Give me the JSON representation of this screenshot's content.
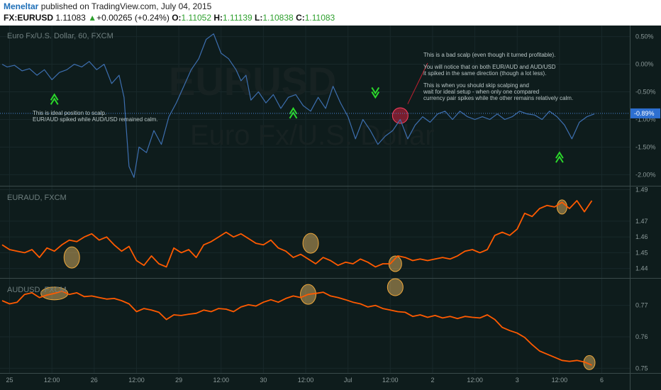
{
  "header": {
    "author": "Meneltar",
    "published": " published on TradingView.com, July 04, 2015",
    "symbol": "FX:EURUSD",
    "price": "1.11083",
    "arrow": "▲",
    "change": "+0.00265 (+0.24%)",
    "o_label": "O:",
    "o_value": "1.11052",
    "h_label": "H:",
    "h_value": "1.11139",
    "l_label": "L:",
    "l_value": "1.10838",
    "c_label": "C:",
    "c_value": "1.11083"
  },
  "colors": {
    "background": "#0e1c1c",
    "grid": "#18282a",
    "eurusd_line": "#3d6fb0",
    "pair_line": "#ff5a00",
    "highlight_fill": "#f5c36b",
    "bad_scalp": "#d02040",
    "arrows": "#2bd82b",
    "price_badge": "#2d6fd0"
  },
  "chart_data": [
    {
      "type": "line",
      "title": "Euro Fx/U.S. Dollar, 60, FXCM",
      "watermark": [
        "EURUSD",
        "Euro Fx/U.S. Dollar"
      ],
      "yunit": "%",
      "ylim": [
        -2.2,
        0.7
      ],
      "yticks": [
        0.5,
        0.0,
        -0.5,
        -1.0,
        -1.5,
        -2.0
      ],
      "ytick_labels": [
        "0.50%",
        "0.00%",
        "-0.50%",
        "-1.00%",
        "-1.50%",
        "-2.00%"
      ],
      "last_value_label": "-0.89%",
      "last_value": -0.89,
      "series": [
        {
          "x": [
            0,
            2,
            5,
            8,
            11,
            14,
            17,
            20,
            23,
            26,
            29,
            32,
            35,
            38,
            41,
            44,
            47,
            49,
            51,
            53,
            55,
            58,
            61,
            64,
            67,
            70,
            73,
            76,
            79,
            82,
            85,
            88,
            91,
            94,
            96,
            98,
            100,
            103,
            106,
            109,
            112,
            115,
            118,
            121,
            124,
            127,
            130,
            133,
            136,
            139,
            142,
            145,
            148,
            151,
            154,
            157,
            160,
            163,
            166,
            169,
            172,
            175,
            178,
            181,
            184,
            187,
            190,
            193,
            196,
            199,
            202,
            205,
            208,
            211,
            214,
            217,
            220,
            223,
            226,
            229,
            232,
            235,
            238
          ],
          "values": [
            0.0,
            -0.05,
            -0.02,
            -0.12,
            -0.08,
            -0.2,
            -0.1,
            -0.28,
            -0.15,
            -0.1,
            0.0,
            -0.05,
            0.05,
            -0.1,
            0.0,
            -0.35,
            -0.2,
            -0.6,
            -1.85,
            -2.05,
            -1.5,
            -1.6,
            -1.2,
            -1.45,
            -0.95,
            -0.7,
            -0.4,
            -0.1,
            0.1,
            0.45,
            0.55,
            0.2,
            0.1,
            -0.1,
            -0.3,
            -0.2,
            -0.65,
            -0.5,
            -0.7,
            -0.55,
            -0.8,
            -0.6,
            -0.55,
            -0.75,
            -0.85,
            -0.6,
            -0.8,
            -0.4,
            -0.7,
            -0.95,
            -1.35,
            -1.0,
            -1.2,
            -1.45,
            -1.3,
            -1.2,
            -1.0,
            -1.35,
            -1.1,
            -0.95,
            -1.05,
            -0.9,
            -0.85,
            -1.0,
            -0.85,
            -0.95,
            -1.0,
            -0.95,
            -1.0,
            -0.9,
            -1.0,
            -0.95,
            -0.85,
            -0.9,
            -0.92,
            -1.0,
            -0.85,
            -0.95,
            -1.1,
            -1.35,
            -1.05,
            -0.95,
            -0.9
          ]
        }
      ],
      "annotations": [
        "This is ideal position to scalp.",
        "EUR/AUD spiked while AUD/USD remained calm.",
        "This is a bad scalp (even though it turned profitable).",
        "You will notice that on both EUR/AUD and AUD/USD",
        "it spiked in the same direction (though a lot less).",
        "This is when you should skip scalping and",
        "wait for ideal setup - when only one compared",
        "currency pair spikes while the other remains relatively calm."
      ]
    },
    {
      "type": "line",
      "title": "EURAUD, FXCM",
      "ylim": [
        1.434,
        1.492
      ],
      "yticks": [
        1.49,
        1.47,
        1.46,
        1.45,
        1.44
      ],
      "ytick_labels": [
        "1.49",
        "1.47",
        "1.46",
        "1.45",
        "1.44"
      ],
      "series": [
        {
          "x": [
            0,
            3,
            6,
            9,
            12,
            15,
            18,
            21,
            24,
            27,
            30,
            33,
            36,
            39,
            42,
            45,
            48,
            51,
            54,
            57,
            60,
            63,
            66,
            69,
            72,
            75,
            78,
            81,
            84,
            87,
            90,
            93,
            96,
            99,
            102,
            105,
            108,
            111,
            114,
            117,
            120,
            123,
            126,
            129,
            132,
            135,
            138,
            141,
            144,
            147,
            150,
            153,
            156,
            159,
            162,
            165,
            168,
            171,
            174,
            177,
            180,
            183,
            186,
            189,
            192,
            195,
            198,
            201,
            204,
            207,
            210,
            213,
            216,
            219,
            222,
            225,
            228,
            231,
            234,
            237
          ],
          "values": [
            1.455,
            1.452,
            1.451,
            1.45,
            1.452,
            1.447,
            1.453,
            1.451,
            1.455,
            1.458,
            1.457,
            1.46,
            1.462,
            1.458,
            1.46,
            1.455,
            1.451,
            1.454,
            1.445,
            1.442,
            1.448,
            1.443,
            1.441,
            1.453,
            1.45,
            1.452,
            1.447,
            1.455,
            1.457,
            1.46,
            1.463,
            1.46,
            1.462,
            1.459,
            1.456,
            1.455,
            1.458,
            1.453,
            1.451,
            1.447,
            1.449,
            1.446,
            1.443,
            1.447,
            1.445,
            1.442,
            1.444,
            1.443,
            1.446,
            1.444,
            1.441,
            1.443,
            1.443,
            1.448,
            1.447,
            1.445,
            1.446,
            1.445,
            1.446,
            1.447,
            1.446,
            1.448,
            1.451,
            1.452,
            1.45,
            1.452,
            1.461,
            1.463,
            1.461,
            1.465,
            1.475,
            1.473,
            1.478,
            1.48,
            1.479,
            1.482,
            1.478,
            1.483,
            1.476,
            1.483
          ]
        }
      ]
    },
    {
      "type": "line",
      "title": "AUDUSD, FXCM",
      "ylim": [
        0.7485,
        0.7785
      ],
      "yticks": [
        0.77,
        0.76,
        0.75
      ],
      "ytick_labels": [
        "0.77",
        "0.76",
        "0.75"
      ],
      "xtick_labels": [
        "25",
        "12:00",
        "26",
        "12:00",
        "29",
        "12:00",
        "30",
        "12:00",
        "Jul",
        "12:00",
        "2",
        "12:00",
        "3",
        "12:00",
        "6"
      ],
      "series": [
        {
          "x": [
            0,
            3,
            6,
            9,
            12,
            15,
            18,
            21,
            24,
            27,
            30,
            33,
            36,
            39,
            42,
            45,
            48,
            51,
            54,
            57,
            60,
            63,
            66,
            69,
            72,
            75,
            78,
            81,
            84,
            87,
            90,
            93,
            96,
            99,
            102,
            105,
            108,
            111,
            114,
            117,
            120,
            123,
            126,
            129,
            132,
            135,
            138,
            141,
            144,
            147,
            150,
            153,
            156,
            159,
            162,
            165,
            168,
            171,
            174,
            177,
            180,
            183,
            186,
            189,
            192,
            195,
            198,
            201,
            204,
            207,
            210,
            213,
            216,
            219,
            222,
            225,
            228,
            231,
            234,
            237
          ],
          "values": [
            0.7715,
            0.7705,
            0.771,
            0.7735,
            0.774,
            0.7725,
            0.7733,
            0.7738,
            0.7745,
            0.7735,
            0.774,
            0.7728,
            0.773,
            0.7725,
            0.772,
            0.7722,
            0.7715,
            0.7705,
            0.768,
            0.769,
            0.7685,
            0.7678,
            0.7655,
            0.767,
            0.7668,
            0.7672,
            0.7675,
            0.7685,
            0.768,
            0.769,
            0.7688,
            0.768,
            0.7695,
            0.7702,
            0.7698,
            0.771,
            0.7718,
            0.771,
            0.7722,
            0.773,
            0.7725,
            0.7735,
            0.7738,
            0.7742,
            0.773,
            0.7725,
            0.7718,
            0.771,
            0.7705,
            0.7695,
            0.77,
            0.769,
            0.7685,
            0.768,
            0.7678,
            0.7665,
            0.767,
            0.7662,
            0.7668,
            0.766,
            0.7665,
            0.7658,
            0.7665,
            0.7662,
            0.766,
            0.767,
            0.7655,
            0.763,
            0.762,
            0.7612,
            0.7598,
            0.7575,
            0.7555,
            0.7545,
            0.7535,
            0.7525,
            0.7522,
            0.7525,
            0.752,
            0.751
          ]
        }
      ]
    }
  ]
}
